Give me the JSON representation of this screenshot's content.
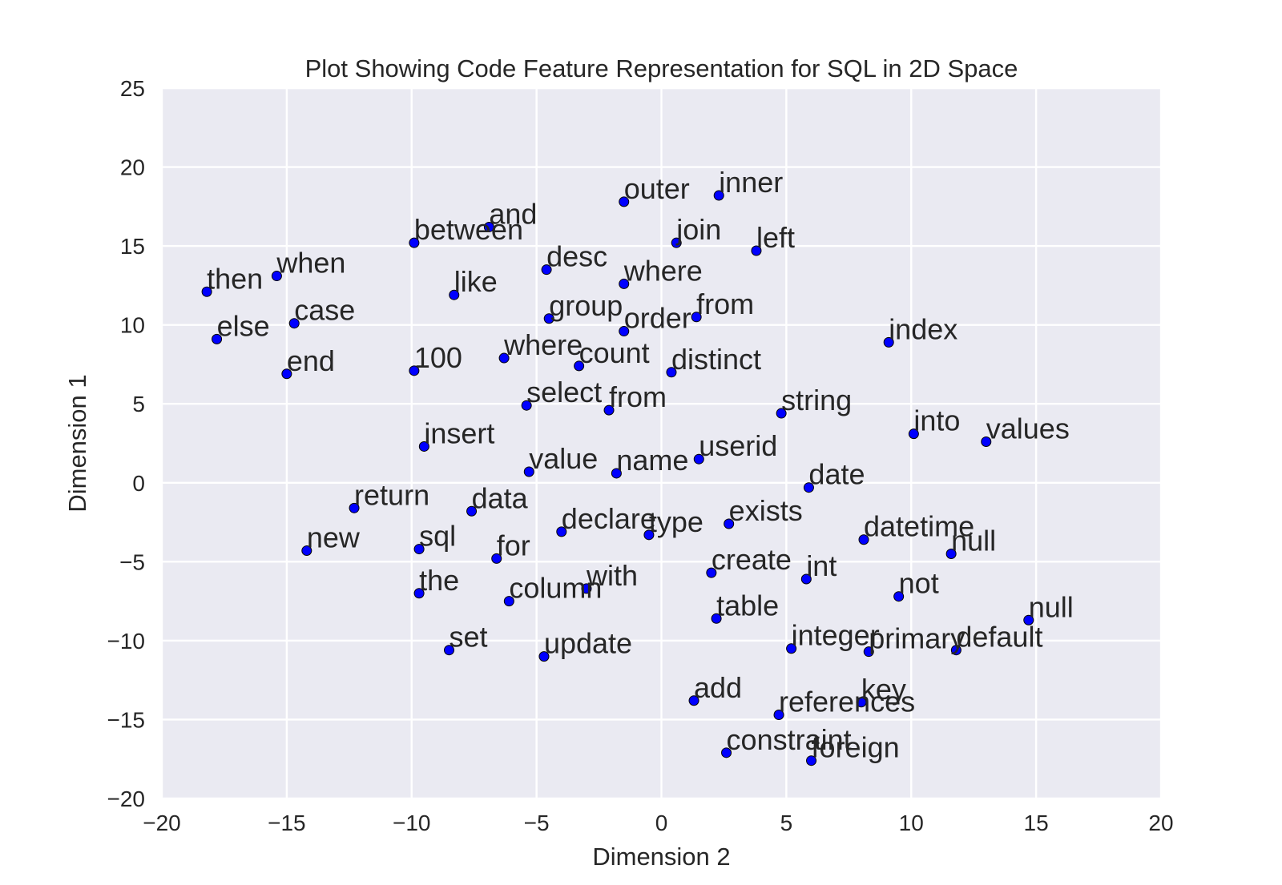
{
  "chart_data": {
    "type": "scatter",
    "title": "Plot Showing Code Feature Representation for SQL in 2D Space",
    "xlabel": "Dimension 2",
    "ylabel": "Dimension 1",
    "xlim": [
      -20,
      20
    ],
    "ylim": [
      -20,
      25
    ],
    "xticks": [
      -20,
      -15,
      -10,
      -5,
      0,
      5,
      10,
      15,
      20
    ],
    "yticks": [
      -20,
      -15,
      -10,
      -5,
      0,
      5,
      10,
      15,
      20,
      25
    ],
    "xtick_labels": [
      "−20",
      "−15",
      "−10",
      "−5",
      "0",
      "5",
      "10",
      "15",
      "20"
    ],
    "ytick_labels": [
      "−20",
      "−15",
      "−10",
      "−5",
      "0",
      "5",
      "10",
      "15",
      "20",
      "25"
    ],
    "grid": true,
    "colors": {
      "point": "#0000ff",
      "background": "#eaeaf2",
      "grid": "#ffffff",
      "text": "#262626"
    },
    "points": [
      {
        "label": "outer",
        "x": -1.5,
        "y": 17.8
      },
      {
        "label": "inner",
        "x": 2.3,
        "y": 18.2
      },
      {
        "label": "and",
        "x": -6.9,
        "y": 16.2
      },
      {
        "label": "between",
        "x": -9.9,
        "y": 15.2
      },
      {
        "label": "join",
        "x": 0.6,
        "y": 15.2
      },
      {
        "label": "left",
        "x": 3.8,
        "y": 14.7
      },
      {
        "label": "desc",
        "x": -4.6,
        "y": 13.5
      },
      {
        "label": "when",
        "x": -15.4,
        "y": 13.1
      },
      {
        "label": "where",
        "x": -1.5,
        "y": 12.6
      },
      {
        "label": "then",
        "x": -18.2,
        "y": 12.1
      },
      {
        "label": "like",
        "x": -8.3,
        "y": 11.9
      },
      {
        "label": "group",
        "x": -4.5,
        "y": 10.4
      },
      {
        "label": "from",
        "x": 1.4,
        "y": 10.5
      },
      {
        "label": "case",
        "x": -14.7,
        "y": 10.1
      },
      {
        "label": "order",
        "x": -1.5,
        "y": 9.6
      },
      {
        "label": "else",
        "x": -17.8,
        "y": 9.1
      },
      {
        "label": "index",
        "x": 9.1,
        "y": 8.9
      },
      {
        "label": "where",
        "x": -6.3,
        "y": 7.9
      },
      {
        "label": "count",
        "x": -3.3,
        "y": 7.4
      },
      {
        "label": "100",
        "x": -9.9,
        "y": 7.1
      },
      {
        "label": "distinct",
        "x": 0.4,
        "y": 7.0
      },
      {
        "label": "end",
        "x": -15.0,
        "y": 6.9
      },
      {
        "label": "select",
        "x": -5.4,
        "y": 4.9
      },
      {
        "label": "from",
        "x": -2.1,
        "y": 4.6
      },
      {
        "label": "string",
        "x": 4.8,
        "y": 4.4
      },
      {
        "label": "into",
        "x": 10.1,
        "y": 3.1
      },
      {
        "label": "values",
        "x": 13.0,
        "y": 2.6
      },
      {
        "label": "insert",
        "x": -9.5,
        "y": 2.3
      },
      {
        "label": "userid",
        "x": 1.5,
        "y": 1.5
      },
      {
        "label": "value",
        "x": -5.3,
        "y": 0.7
      },
      {
        "label": "name",
        "x": -1.8,
        "y": 0.6
      },
      {
        "label": "date",
        "x": 5.9,
        "y": -0.3
      },
      {
        "label": "return",
        "x": -12.3,
        "y": -1.6
      },
      {
        "label": "data",
        "x": -7.6,
        "y": -1.8
      },
      {
        "label": "exists",
        "x": 2.7,
        "y": -2.6
      },
      {
        "label": "declare",
        "x": -4.0,
        "y": -3.1
      },
      {
        "label": "type",
        "x": -0.5,
        "y": -3.3
      },
      {
        "label": "datetime",
        "x": 8.1,
        "y": -3.6
      },
      {
        "label": "sql",
        "x": -9.7,
        "y": -4.2
      },
      {
        "label": "new",
        "x": -14.2,
        "y": -4.3
      },
      {
        "label": "null",
        "x": 11.6,
        "y": -4.5
      },
      {
        "label": "for",
        "x": -6.6,
        "y": -4.8
      },
      {
        "label": "create",
        "x": 2.0,
        "y": -5.7
      },
      {
        "label": "int",
        "x": 5.8,
        "y": -6.1
      },
      {
        "label": "with",
        "x": -3.0,
        "y": -6.7
      },
      {
        "label": "the",
        "x": -9.7,
        "y": -7.0
      },
      {
        "label": "not",
        "x": 9.5,
        "y": -7.2
      },
      {
        "label": "column",
        "x": -6.1,
        "y": -7.5
      },
      {
        "label": "table",
        "x": 2.2,
        "y": -8.6
      },
      {
        "label": "null",
        "x": 14.7,
        "y": -8.7
      },
      {
        "label": "integer",
        "x": 5.2,
        "y": -10.5
      },
      {
        "label": "set",
        "x": -8.5,
        "y": -10.6
      },
      {
        "label": "primary",
        "x": 8.3,
        "y": -10.7
      },
      {
        "label": "default",
        "x": 11.8,
        "y": -10.6
      },
      {
        "label": "update",
        "x": -4.7,
        "y": -11.0
      },
      {
        "label": "add",
        "x": 1.3,
        "y": -13.8
      },
      {
        "label": "key",
        "x": 8.0,
        "y": -13.9
      },
      {
        "label": "references",
        "x": 4.7,
        "y": -14.7
      },
      {
        "label": "constraint",
        "x": 2.6,
        "y": -17.1
      },
      {
        "label": "foreign",
        "x": 6.0,
        "y": -17.6
      }
    ]
  }
}
